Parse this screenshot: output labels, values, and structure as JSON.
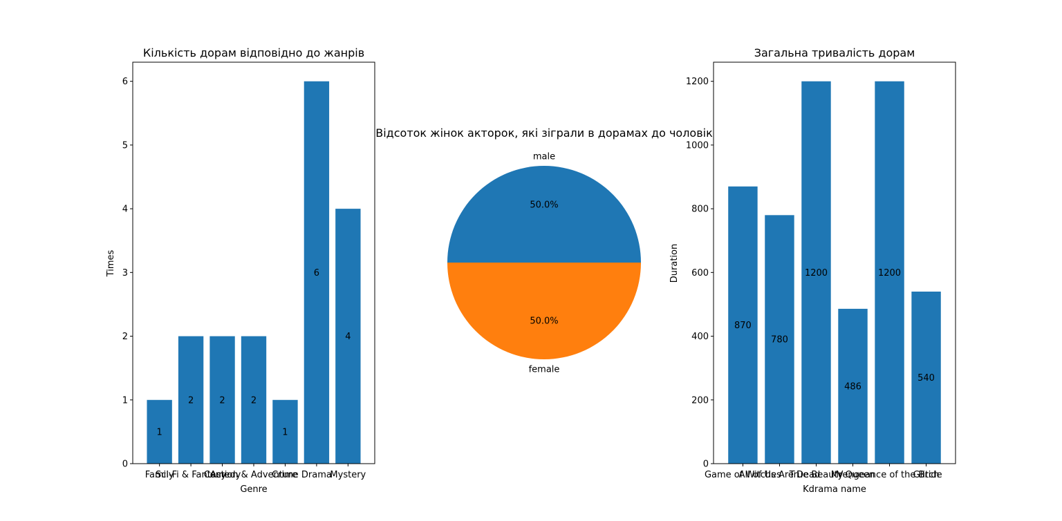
{
  "chart_data": [
    {
      "type": "bar",
      "title": "Кількість дорам відповідно до жанрів",
      "xlabel": "Genre",
      "ylabel": "Times",
      "categories": [
        "Family",
        "Sci-Fi & Fantasy",
        "Comedy",
        "Action & Adventure",
        "Crime",
        "Drama",
        "Mystery"
      ],
      "values": [
        1,
        2,
        2,
        2,
        1,
        6,
        4
      ],
      "ylim": [
        0,
        6.3
      ],
      "yticks": [
        0,
        1,
        2,
        3,
        4,
        5,
        6
      ],
      "color": "#1f77b4",
      "data_labels": true
    },
    {
      "type": "pie",
      "title": "Відсоток жінок акторок, які зіграли в дорамах до чоловік",
      "labels": [
        "male",
        "female"
      ],
      "values": [
        50,
        50
      ],
      "pct_labels": [
        "50.0%",
        "50.0%"
      ],
      "colors": [
        "#1f77b4",
        "#ff7f0e"
      ]
    },
    {
      "type": "bar",
      "title": "Загальна тривалість дорам",
      "xlabel": "Kdrama name",
      "ylabel": "Duration",
      "categories": [
        "Game of Witches",
        "All of Us Are Dead",
        "True Beauty",
        "Mr Queen",
        "Vengeance of the Bride",
        "Glitch"
      ],
      "values": [
        870,
        780,
        1200,
        486,
        1200,
        540
      ],
      "ylim": [
        0,
        1260
      ],
      "yticks": [
        0,
        200,
        400,
        600,
        800,
        1000,
        1200
      ],
      "color": "#1f77b4",
      "data_labels": true
    }
  ]
}
